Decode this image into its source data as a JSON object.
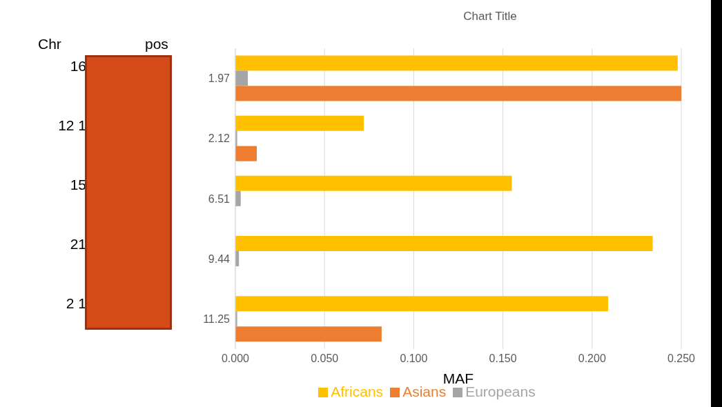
{
  "chart_data": {
    "type": "bar",
    "orientation": "horizontal",
    "title": "Chart Title",
    "xlabel": "MAF",
    "categories": [
      "1.97",
      "2.12",
      "6.51",
      "9.44",
      "11.25"
    ],
    "series": [
      {
        "name": "Africans",
        "color": "#ffc000",
        "values": [
          0.248,
          0.072,
          0.155,
          0.234,
          0.209
        ]
      },
      {
        "name": "Europeans",
        "color": "#a5a5a5",
        "values": [
          0.007,
          0.001,
          0.003,
          0.002,
          0.001
        ]
      },
      {
        "name": "Asians",
        "color": "#ed7d31",
        "values": [
          0.25,
          0.012,
          0,
          0,
          0.082
        ]
      }
    ],
    "xlim": [
      0,
      0.25
    ],
    "xticks": [
      {
        "value": 0,
        "label": "0.000"
      },
      {
        "value": 0.05,
        "label": "0.050"
      },
      {
        "value": 0.1,
        "label": "0.100"
      },
      {
        "value": 0.15,
        "label": "0.150"
      },
      {
        "value": 0.2,
        "label": "0.200"
      },
      {
        "value": 0.25,
        "label": "0.250"
      }
    ],
    "grid": "x",
    "legend": "bottom",
    "annotations": [
      "Chr",
      "pos",
      "16",
      "12 1",
      "15",
      "21",
      "2 1"
    ]
  }
}
